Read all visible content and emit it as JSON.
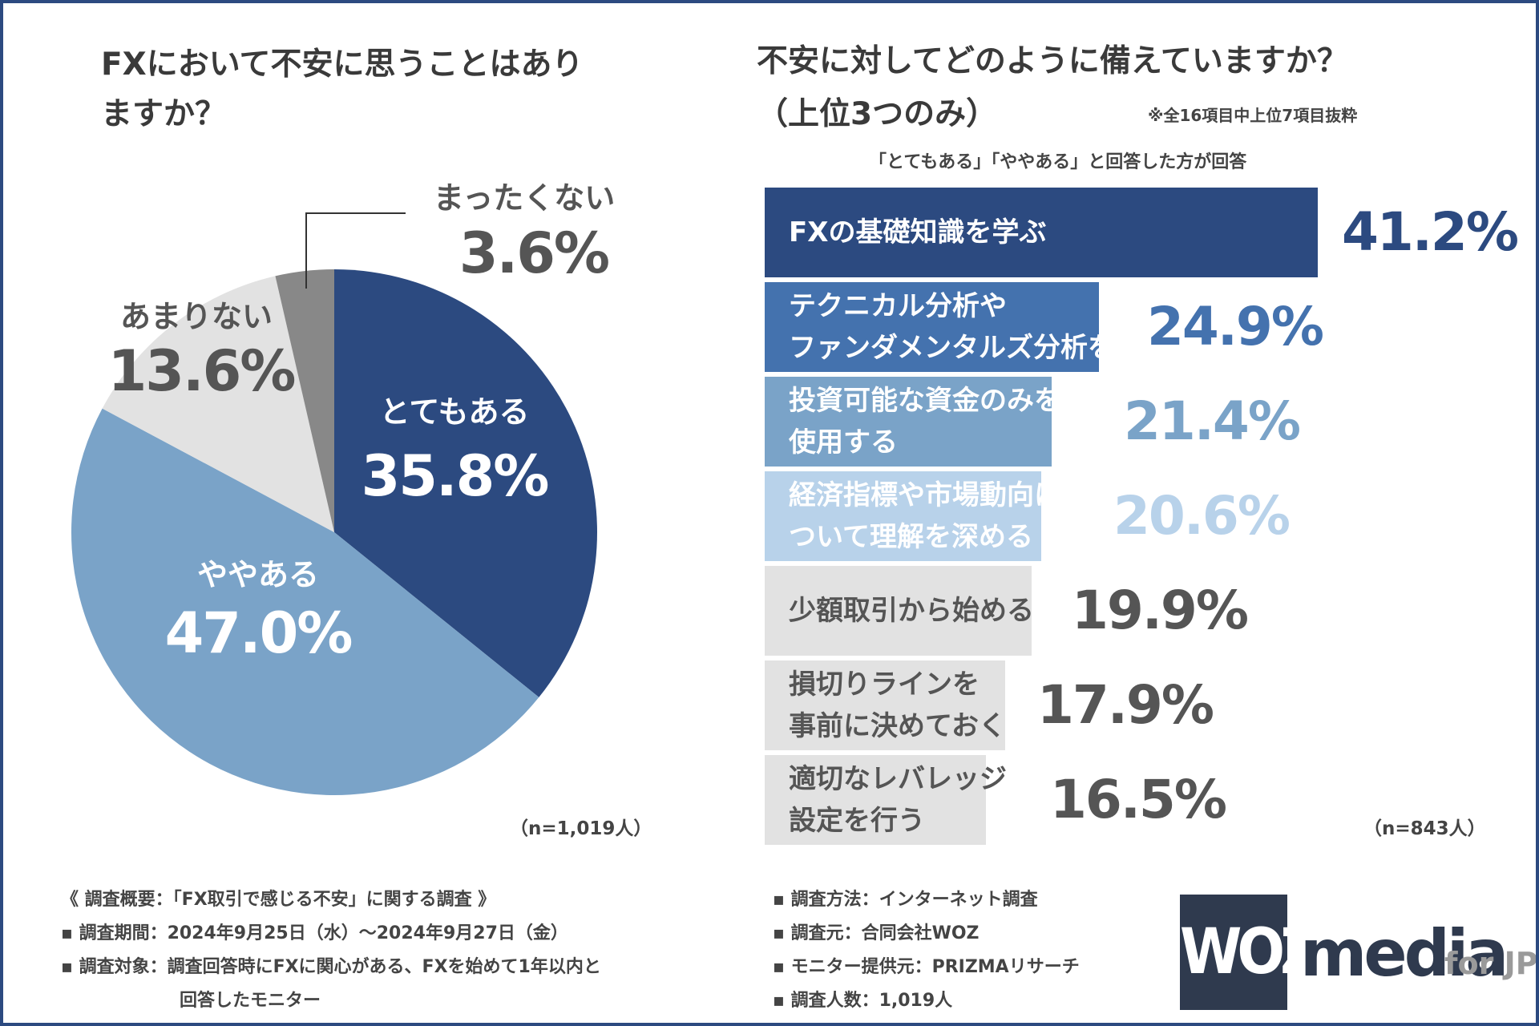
{
  "left": {
    "title": "FXにおいて不安に思うことはありますか？",
    "n_label": "（n=1,019人）"
  },
  "right": {
    "title_line1": "不安に対してどのように備えていますか？",
    "title_line2": "（上位3つのみ）",
    "note": "※全16項目中上位7項目抜粋",
    "subtitle": "「とてもある」「ややある」と回答した方が回答",
    "n_label": "（n=843人）"
  },
  "chart_data": [
    {
      "type": "pie",
      "title": "FXにおいて不安に思うことはありますか？",
      "slices": [
        {
          "label": "とてもある",
          "value": 35.8,
          "value_label": "35.8%",
          "color": "#2c4a80",
          "label_color": "#ffffff"
        },
        {
          "label": "ややある",
          "value": 47.0,
          "value_label": "47.0%",
          "color": "#7aa3c8",
          "label_color": "#ffffff"
        },
        {
          "label": "あまりない",
          "value": 13.6,
          "value_label": "13.6%",
          "color": "#e2e2e2",
          "label_color": "#555555"
        },
        {
          "label": "まったくない",
          "value": 3.6,
          "value_label": "3.6%",
          "color": "#888888",
          "label_color": "#555555"
        }
      ],
      "n": "（n=1,019人）"
    },
    {
      "type": "bar",
      "orientation": "horizontal",
      "title": "不安に対してどのように備えていますか？（上位3つのみ）",
      "xlim": [
        0,
        41.2
      ],
      "categories": [
        [
          "FXの基礎知識を学ぶ"
        ],
        [
          "テクニカル分析や",
          "ファンダメンタルズ分析を習得する"
        ],
        [
          "投資可能な資金のみを",
          "使用する"
        ],
        [
          "経済指標や市場動向に",
          "ついて理解を深める"
        ],
        [
          "少額取引から始める"
        ],
        [
          "損切りラインを",
          "事前に決めておく"
        ],
        [
          "適切なレバレッジ",
          "設定を行う"
        ]
      ],
      "values": [
        41.2,
        24.9,
        21.4,
        20.6,
        19.9,
        17.9,
        16.5
      ],
      "value_labels": [
        "41.2%",
        "24.9%",
        "21.4%",
        "20.6%",
        "19.9%",
        "17.9%",
        "16.5%"
      ],
      "colors": [
        "#2c4a80",
        "#4472ae",
        "#7aa3c8",
        "#b8d2ea",
        "#e2e2e2",
        "#e2e2e2",
        "#e2e2e2"
      ],
      "label_colors": [
        "#ffffff",
        "#ffffff",
        "#ffffff",
        "#ffffff",
        "#555555",
        "#555555",
        "#555555"
      ],
      "value_colors": [
        "#2c4a80",
        "#4472ae",
        "#7aa3c8",
        "#b8d2ea",
        "#555555",
        "#555555",
        "#555555"
      ],
      "n": "（n=843人）"
    }
  ],
  "footer": {
    "left": [
      "《 調査概要：「FX取引で感じる不安」に関する調査 》",
      "▪ 調査期間：2024年9月25日（水）～2024年9月27日（金）",
      "▪ 調査対象：調査回答時にFXに関心がある、FXを始めて1年以内と",
      "回答したモニター"
    ],
    "right": [
      "▪ 調査方法：インターネット調査",
      "▪ 調査元：合同会社WOZ",
      "▪ モニター提供元：PRIZMAリサーチ",
      "▪ 調査人数：1,019人"
    ]
  },
  "logo": {
    "box_text": "WOZ",
    "media_text": "media",
    "suffix_text": "for JP"
  }
}
